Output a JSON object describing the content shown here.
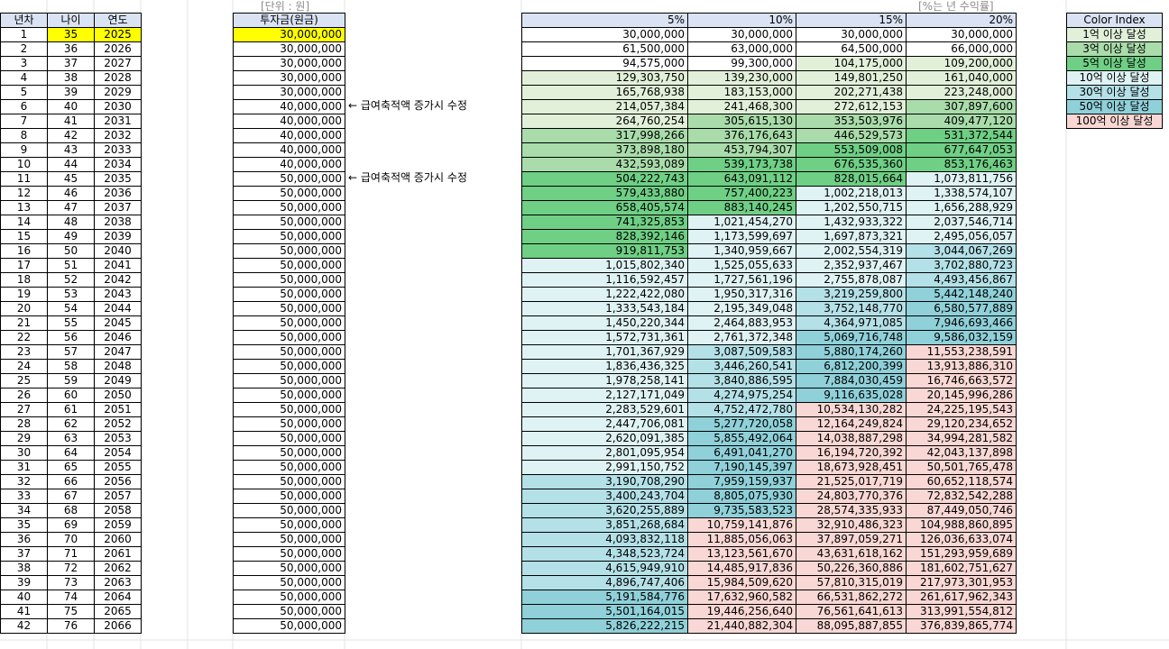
{
  "header_labels": {
    "unit": "[단위 : 원]",
    "rate_note": "[%는 년 수익률]"
  },
  "left_table": {
    "headers": [
      "년차",
      "나이",
      "연도"
    ],
    "rows": [
      [
        "1",
        "35",
        "2025"
      ],
      [
        "2",
        "36",
        "2026"
      ],
      [
        "3",
        "37",
        "2027"
      ],
      [
        "4",
        "38",
        "2028"
      ],
      [
        "5",
        "39",
        "2029"
      ],
      [
        "6",
        "40",
        "2030"
      ],
      [
        "7",
        "41",
        "2031"
      ],
      [
        "8",
        "42",
        "2032"
      ],
      [
        "9",
        "43",
        "2033"
      ],
      [
        "10",
        "44",
        "2034"
      ],
      [
        "11",
        "45",
        "2035"
      ],
      [
        "12",
        "46",
        "2036"
      ],
      [
        "13",
        "47",
        "2037"
      ],
      [
        "14",
        "48",
        "2038"
      ],
      [
        "15",
        "49",
        "2039"
      ],
      [
        "16",
        "50",
        "2040"
      ],
      [
        "17",
        "51",
        "2041"
      ],
      [
        "18",
        "52",
        "2042"
      ],
      [
        "19",
        "53",
        "2043"
      ],
      [
        "20",
        "54",
        "2044"
      ],
      [
        "21",
        "55",
        "2045"
      ],
      [
        "22",
        "56",
        "2046"
      ],
      [
        "23",
        "57",
        "2047"
      ],
      [
        "24",
        "58",
        "2048"
      ],
      [
        "25",
        "59",
        "2049"
      ],
      [
        "26",
        "60",
        "2050"
      ],
      [
        "27",
        "61",
        "2051"
      ],
      [
        "28",
        "62",
        "2052"
      ],
      [
        "29",
        "63",
        "2053"
      ],
      [
        "30",
        "64",
        "2054"
      ],
      [
        "31",
        "65",
        "2055"
      ],
      [
        "32",
        "66",
        "2056"
      ],
      [
        "33",
        "67",
        "2057"
      ],
      [
        "34",
        "68",
        "2058"
      ],
      [
        "35",
        "69",
        "2059"
      ],
      [
        "36",
        "70",
        "2060"
      ],
      [
        "37",
        "71",
        "2061"
      ],
      [
        "38",
        "72",
        "2062"
      ],
      [
        "39",
        "73",
        "2063"
      ],
      [
        "40",
        "74",
        "2064"
      ],
      [
        "41",
        "75",
        "2065"
      ],
      [
        "42",
        "76",
        "2066"
      ]
    ]
  },
  "investment": {
    "header": "투자금(원금)",
    "values": [
      "30,000,000",
      "30,000,000",
      "30,000,000",
      "30,000,000",
      "30,000,000",
      "40,000,000",
      "40,000,000",
      "40,000,000",
      "40,000,000",
      "40,000,000",
      "50,000,000",
      "50,000,000",
      "50,000,000",
      "50,000,000",
      "50,000,000",
      "50,000,000",
      "50,000,000",
      "50,000,000",
      "50,000,000",
      "50,000,000",
      "50,000,000",
      "50,000,000",
      "50,000,000",
      "50,000,000",
      "50,000,000",
      "50,000,000",
      "50,000,000",
      "50,000,000",
      "50,000,000",
      "50,000,000",
      "50,000,000",
      "50,000,000",
      "50,000,000",
      "50,000,000",
      "50,000,000",
      "50,000,000",
      "50,000,000",
      "50,000,000",
      "50,000,000",
      "50,000,000",
      "50,000,000",
      "50,000,000"
    ],
    "notes": [
      {
        "row": 6,
        "text": "← 급여축적액 증가시 수정"
      },
      {
        "row": 11,
        "text": "← 급여축적액 증가시 수정"
      }
    ]
  },
  "highlight_color": "#ffff00",
  "main_table": {
    "headers": [
      "5%",
      "10%",
      "15%",
      "20%"
    ],
    "columns": [
      [
        "30,000,000",
        "61,500,000",
        "94,575,000",
        "129,303,750",
        "165,768,938",
        "214,057,384",
        "264,760,254",
        "317,998,266",
        "373,898,180",
        "432,593,089",
        "504,222,743",
        "579,433,880",
        "658,405,574",
        "741,325,853",
        "828,392,146",
        "919,811,753",
        "1,015,802,340",
        "1,116,592,457",
        "1,222,422,080",
        "1,333,543,184",
        "1,450,220,344",
        "1,572,731,361",
        "1,701,367,929",
        "1,836,436,325",
        "1,978,258,141",
        "2,127,171,049",
        "2,283,529,601",
        "2,447,706,081",
        "2,620,091,385",
        "2,801,095,954",
        "2,991,150,752",
        "3,190,708,290",
        "3,400,243,704",
        "3,620,255,889",
        "3,851,268,684",
        "4,093,832,118",
        "4,348,523,724",
        "4,615,949,910",
        "4,896,747,406",
        "5,191,584,776",
        "5,501,164,015",
        "5,826,222,215"
      ],
      [
        "30,000,000",
        "63,000,000",
        "99,300,000",
        "139,230,000",
        "183,153,000",
        "241,468,300",
        "305,615,130",
        "376,176,643",
        "453,794,307",
        "539,173,738",
        "643,091,112",
        "757,400,223",
        "883,140,245",
        "1,021,454,270",
        "1,173,599,697",
        "1,340,959,667",
        "1,525,055,633",
        "1,727,561,196",
        "1,950,317,316",
        "2,195,349,048",
        "2,464,883,953",
        "2,761,372,348",
        "3,087,509,583",
        "3,446,260,541",
        "3,840,886,595",
        "4,274,975,254",
        "4,752,472,780",
        "5,277,720,058",
        "5,855,492,064",
        "6,491,041,270",
        "7,190,145,397",
        "7,959,159,937",
        "8,805,075,930",
        "9,735,583,523",
        "10,759,141,876",
        "11,885,056,063",
        "13,123,561,670",
        "14,485,917,836",
        "15,984,509,620",
        "17,632,960,582",
        "19,446,256,640",
        "21,440,882,304"
      ],
      [
        "30,000,000",
        "64,500,000",
        "104,175,000",
        "149,801,250",
        "202,271,438",
        "272,612,153",
        "353,503,976",
        "446,529,573",
        "553,509,008",
        "676,535,360",
        "828,015,664",
        "1,002,218,013",
        "1,202,550,715",
        "1,432,933,322",
        "1,697,873,321",
        "2,002,554,319",
        "2,352,937,467",
        "2,755,878,087",
        "3,219,259,800",
        "3,752,148,770",
        "4,364,971,085",
        "5,069,716,748",
        "5,880,174,260",
        "6,812,200,399",
        "7,884,030,459",
        "9,116,635,028",
        "10,534,130,282",
        "12,164,249,824",
        "14,038,887,298",
        "16,194,720,392",
        "18,673,928,451",
        "21,525,017,719",
        "24,803,770,376",
        "28,574,335,933",
        "32,910,486,323",
        "37,897,059,271",
        "43,631,618,162",
        "50,226,360,886",
        "57,810,315,019",
        "66,531,862,272",
        "76,561,641,613",
        "88,095,887,855"
      ],
      [
        "30,000,000",
        "66,000,000",
        "109,200,000",
        "161,040,000",
        "223,248,000",
        "307,897,600",
        "409,477,120",
        "531,372,544",
        "677,647,053",
        "853,176,463",
        "1,073,811,756",
        "1,338,574,107",
        "1,656,288,929",
        "2,037,546,714",
        "2,495,056,057",
        "3,044,067,269",
        "3,702,880,723",
        "4,493,456,867",
        "5,442,148,240",
        "6,580,577,889",
        "7,946,693,466",
        "9,586,032,159",
        "11,553,238,591",
        "13,913,886,310",
        "16,746,663,572",
        "20,145,996,286",
        "24,225,195,543",
        "29,120,234,652",
        "34,994,281,582",
        "42,043,137,898",
        "50,501,765,478",
        "60,652,118,574",
        "72,832,542,288",
        "87,449,050,746",
        "104,988,860,895",
        "126,036,633,074",
        "151,293,959,689",
        "181,602,751,627",
        "217,973,301,953",
        "261,617,962,343",
        "313,991,554,812",
        "376,839,865,774"
      ]
    ]
  },
  "legend": {
    "header": "Color Index",
    "items": [
      {
        "label": "1억 이상 달성",
        "color": "#e2f0d9"
      },
      {
        "label": "3억 이상 달성",
        "color": "#a9dcaa"
      },
      {
        "label": "5억 이상 달성",
        "color": "#6fcf85"
      },
      {
        "label": "10억 이상 달성",
        "color": "#dff2f4"
      },
      {
        "label": "30억 이상 달성",
        "color": "#b4e0e7"
      },
      {
        "label": "50억 이상 달성",
        "color": "#8fd0d9"
      },
      {
        "label": "100억 이상 달성",
        "color": "#f8d7d4"
      }
    ]
  }
}
